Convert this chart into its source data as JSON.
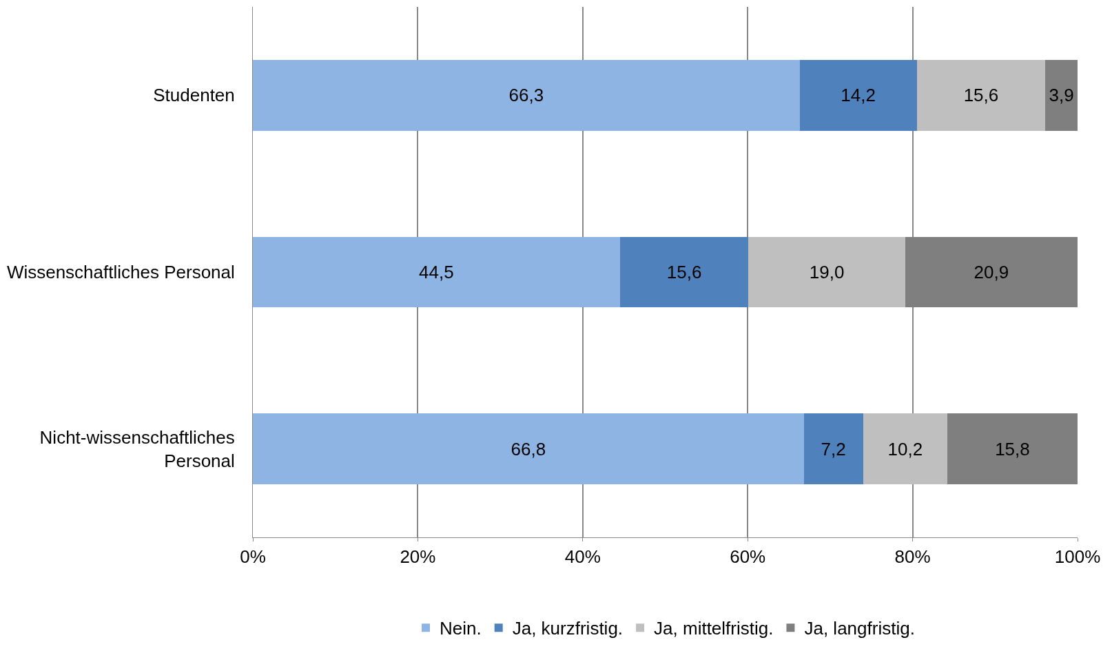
{
  "chart_data": {
    "type": "bar",
    "orientation": "horizontal",
    "stacked": true,
    "categories": [
      "Studenten",
      "Wissenschaftliches Personal",
      "Nicht-wissenschaftliches\nPersonal"
    ],
    "series": [
      {
        "name": "Nein.",
        "color": "#8eb4e3",
        "values": [
          66.3,
          44.5,
          66.8
        ],
        "value_labels": [
          "66,3",
          "44,5",
          "66,8"
        ]
      },
      {
        "name": "Ja, kurzfristig.",
        "color": "#4f81bd",
        "values": [
          14.2,
          15.6,
          7.2
        ],
        "value_labels": [
          "14,2",
          "15,6",
          "7,2"
        ]
      },
      {
        "name": "Ja, mittelfristig.",
        "color": "#bfbfbf",
        "values": [
          15.6,
          19.0,
          10.2
        ],
        "value_labels": [
          "15,6",
          "19,0",
          "10,2"
        ]
      },
      {
        "name": "Ja, langfristig.",
        "color": "#7f7f7f",
        "values": [
          3.9,
          20.9,
          15.8
        ],
        "value_labels": [
          "3,9",
          "20,9",
          "15,8"
        ]
      }
    ],
    "xlim": [
      0,
      100
    ],
    "xticks": [
      {
        "value": 0,
        "label": "0%"
      },
      {
        "value": 20,
        "label": "20%"
      },
      {
        "value": 40,
        "label": "40%"
      },
      {
        "value": 60,
        "label": "60%"
      },
      {
        "value": 80,
        "label": "80%"
      },
      {
        "value": 100,
        "label": "100%"
      }
    ],
    "grid": "x",
    "legend": "bottom"
  }
}
